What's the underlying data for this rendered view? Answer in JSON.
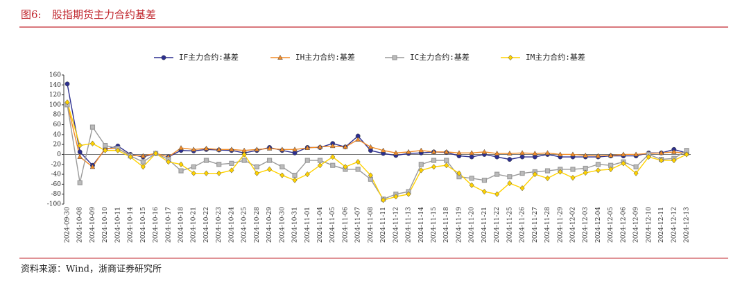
{
  "chart_data": {
    "type": "line",
    "figure_label": "图6:",
    "title": "股指期货主力合约基差",
    "source": "资料来源：Wind，浙商证券研究所",
    "categories": [
      "2024-09-30",
      "2024-10-08",
      "2024-10-09",
      "2024-10-10",
      "2024-10-11",
      "2024-10-14",
      "2024-10-15",
      "2024-10-16",
      "2024-10-17",
      "2024-10-18",
      "2024-10-21",
      "2024-10-22",
      "2024-10-23",
      "2024-10-24",
      "2024-10-25",
      "2024-10-28",
      "2024-10-29",
      "2024-10-30",
      "2024-10-31",
      "2024-11-01",
      "2024-11-04",
      "2024-11-05",
      "2024-11-06",
      "2024-11-07",
      "2024-11-08",
      "2024-11-11",
      "2024-11-12",
      "2024-11-13",
      "2024-11-14",
      "2024-11-15",
      "2024-11-18",
      "2024-11-19",
      "2024-11-20",
      "2024-11-21",
      "2024-11-22",
      "2024-11-25",
      "2024-11-26",
      "2024-11-27",
      "2024-11-28",
      "2024-11-29",
      "2024-12-02",
      "2024-12-03",
      "2024-12-04",
      "2024-12-05",
      "2024-12-06",
      "2024-12-09",
      "2024-12-10",
      "2024-12-11",
      "2024-12-12",
      "2024-12-13"
    ],
    "series": [
      {
        "name": "IF主力合约:基差",
        "color": "#2c2f8f",
        "marker": "circle",
        "values": [
          142,
          5,
          -22,
          10,
          17,
          0,
          -5,
          2,
          -5,
          8,
          7,
          10,
          9,
          8,
          3,
          8,
          14,
          8,
          3,
          14,
          14,
          22,
          15,
          37,
          8,
          2,
          -2,
          2,
          3,
          5,
          4,
          -3,
          -5,
          0,
          -5,
          -10,
          -5,
          -5,
          0,
          -5,
          -5,
          -5,
          -5,
          -3,
          -3,
          -3,
          3,
          3,
          10,
          3
        ]
      },
      {
        "name": "IH主力合约:基差",
        "color": "#f28c28",
        "marker": "triangle",
        "values": [
          102,
          -5,
          -25,
          12,
          12,
          -2,
          -3,
          2,
          -5,
          13,
          10,
          12,
          10,
          10,
          8,
          10,
          12,
          10,
          10,
          13,
          15,
          17,
          15,
          30,
          15,
          8,
          3,
          5,
          8,
          5,
          5,
          3,
          3,
          5,
          2,
          2,
          3,
          2,
          3,
          0,
          0,
          -2,
          -3,
          -2,
          0,
          0,
          2,
          3,
          5,
          2
        ]
      },
      {
        "name": "IC主力合约:基差",
        "color": "#9a9a9a",
        "marker": "square",
        "values": [
          100,
          -57,
          55,
          18,
          12,
          -3,
          -15,
          2,
          -10,
          -33,
          -25,
          -12,
          -20,
          -18,
          -12,
          -25,
          -12,
          -25,
          -42,
          -12,
          -12,
          -22,
          -30,
          -30,
          -50,
          -90,
          -80,
          -75,
          -20,
          -12,
          -12,
          -45,
          -48,
          -52,
          -40,
          -45,
          -38,
          -35,
          -33,
          -30,
          -30,
          -28,
          -20,
          -22,
          -15,
          -25,
          0,
          -10,
          -8,
          8
        ]
      },
      {
        "name": "IM主力合约:基差",
        "color": "#ffd200",
        "marker": "diamond",
        "values": [
          105,
          18,
          22,
          8,
          8,
          -5,
          -25,
          2,
          -15,
          -20,
          -38,
          -38,
          -38,
          -32,
          0,
          -38,
          -30,
          -42,
          -52,
          -40,
          -22,
          -5,
          -25,
          -15,
          -42,
          -92,
          -85,
          -80,
          -32,
          -25,
          -22,
          -38,
          -62,
          -75,
          -80,
          -58,
          -68,
          -40,
          -48,
          -35,
          -47,
          -37,
          -32,
          -30,
          -18,
          -38,
          -5,
          -12,
          -12,
          0
        ]
      }
    ],
    "ylim": [
      -100,
      160
    ],
    "yticks": [
      -100,
      -80,
      -60,
      -40,
      -20,
      0,
      20,
      40,
      60,
      80,
      100,
      120,
      140,
      160
    ],
    "legend": "top"
  }
}
